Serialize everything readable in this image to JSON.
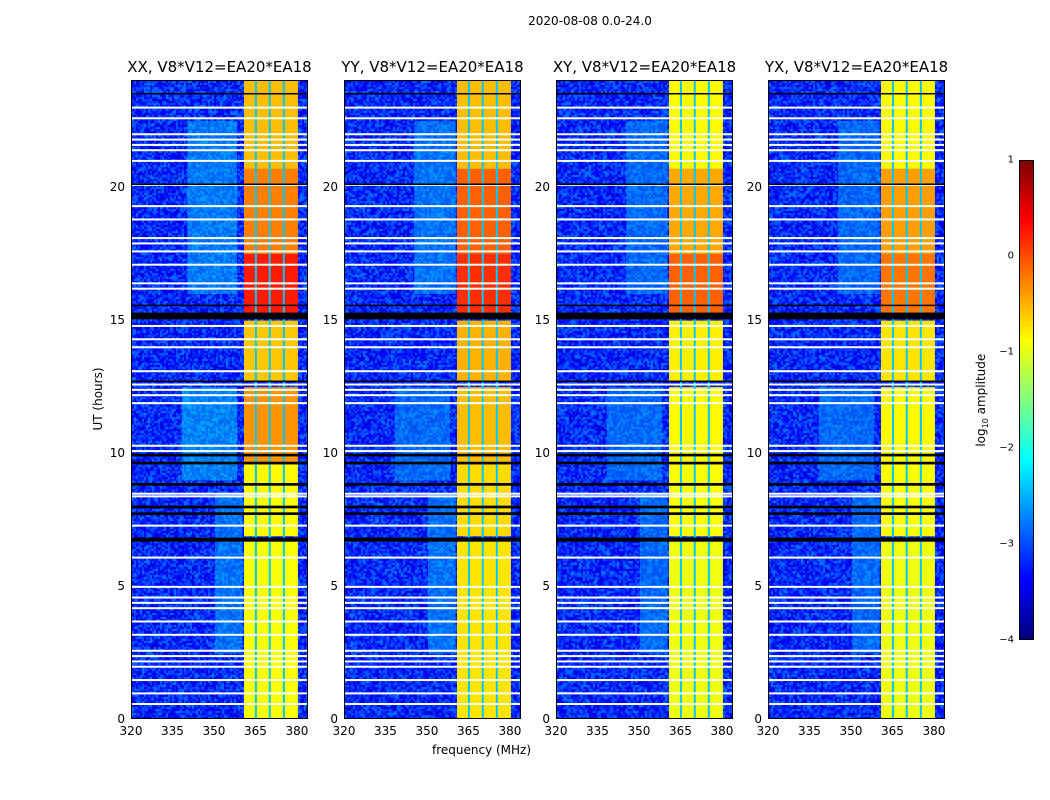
{
  "chart_data": {
    "type": "heatmap",
    "suptitle": "2020-08-08 0.0-24.0",
    "xlabel": "frequency (MHz)",
    "ylabel": "UT (hours)",
    "xlim": [
      320,
      384
    ],
    "ylim": [
      0,
      24
    ],
    "xticks": [
      "320",
      "335",
      "350",
      "365",
      "380"
    ],
    "xtick_values": [
      320,
      335,
      350,
      365,
      380
    ],
    "yticks": [
      "0",
      "5",
      "10",
      "15",
      "20"
    ],
    "ytick_values": [
      0,
      5,
      10,
      15,
      20
    ],
    "colorbar": {
      "label": "log10 amplitude",
      "label_main": "log",
      "label_sub": "10",
      "label_rest": " amplitude",
      "colormap": "jet",
      "range": [
        -4,
        1
      ],
      "ticks": [
        "1",
        "0",
        "−1",
        "−2",
        "−3",
        "−4"
      ],
      "tick_values": [
        1,
        0,
        -1,
        -2,
        -3,
        -4
      ]
    },
    "background_level": -3.2,
    "rfi_band_mhz": [
      360.5,
      380
    ],
    "band_separators_mhz": [
      364.8,
      369.8,
      374.9
    ],
    "flagged_hours_white": [
      0.6,
      1.0,
      1.5,
      2.0,
      2.2,
      2.4,
      2.6,
      3.2,
      3.7,
      4.2,
      4.4,
      4.6,
      5.0,
      6.1,
      7.3,
      8.4,
      8.5,
      10.1,
      10.3,
      11.9,
      12.2,
      12.4,
      12.6,
      13.1,
      14.0,
      14.3,
      14.8,
      16.2,
      16.4,
      17.1,
      17.6,
      17.9,
      18.1,
      18.8,
      19.3,
      20.1,
      21.0,
      21.4,
      21.6,
      21.8,
      22.0,
      22.6,
      23.0
    ],
    "gap_hours_black": [
      [
        6.7,
        6.85
      ],
      [
        7.7,
        7.8
      ],
      [
        7.95,
        8.05
      ],
      [
        8.8,
        8.9
      ],
      [
        9.6,
        9.7
      ],
      [
        9.9,
        10.0
      ],
      [
        12.7,
        12.75
      ],
      [
        15.05,
        15.3
      ],
      [
        15.55,
        15.6
      ],
      [
        20.1,
        20.15
      ],
      [
        23.5,
        23.55
      ]
    ],
    "panels": [
      {
        "title": "XX, V8*V12=EA20*EA18",
        "band_segments": [
          [
            0,
            6.7,
            -0.9
          ],
          [
            6.9,
            9.6,
            -0.85
          ],
          [
            9.6,
            12.5,
            -0.35
          ],
          [
            12.7,
            15.0,
            -0.6
          ],
          [
            15.3,
            17.5,
            0.25
          ],
          [
            17.5,
            20.7,
            -0.25
          ],
          [
            20.7,
            24,
            -0.55
          ]
        ],
        "diffuse_segments": [
          [
            338,
            358,
            9.0,
            12.5,
            -2.2
          ],
          [
            340,
            358,
            16.0,
            22.5,
            -2.3
          ],
          [
            350,
            360,
            2.5,
            8.5,
            -2.4
          ]
        ]
      },
      {
        "title": "YY, V8*V12=EA20*EA18",
        "band_segments": [
          [
            0,
            6.7,
            -0.75
          ],
          [
            6.9,
            9.6,
            -0.7
          ],
          [
            9.6,
            12.5,
            -0.55
          ],
          [
            12.7,
            15.0,
            -0.5
          ],
          [
            15.3,
            17.5,
            0.15
          ],
          [
            17.5,
            20.7,
            -0.1
          ],
          [
            20.7,
            24,
            -0.55
          ]
        ],
        "diffuse_segments": [
          [
            338,
            358,
            9.0,
            12.5,
            -2.5
          ],
          [
            345,
            360,
            16.0,
            22.5,
            -2.4
          ],
          [
            350,
            360,
            2.5,
            8.5,
            -2.4
          ]
        ]
      },
      {
        "title": "XY, V8*V12=EA20*EA18",
        "band_segments": [
          [
            0,
            6.7,
            -0.95
          ],
          [
            6.9,
            9.6,
            -0.9
          ],
          [
            9.6,
            12.5,
            -0.85
          ],
          [
            12.7,
            15.0,
            -0.8
          ],
          [
            15.3,
            17.5,
            -0.1
          ],
          [
            17.5,
            20.7,
            -0.45
          ],
          [
            20.7,
            24,
            -0.85
          ]
        ],
        "diffuse_segments": [
          [
            338,
            358,
            9.0,
            12.5,
            -2.5
          ],
          [
            345,
            360,
            16.0,
            22.5,
            -2.5
          ],
          [
            350,
            360,
            2.5,
            8.5,
            -2.5
          ]
        ]
      },
      {
        "title": "YX, V8*V12=EA20*EA18",
        "band_segments": [
          [
            0,
            6.7,
            -0.95
          ],
          [
            6.9,
            9.6,
            -0.9
          ],
          [
            9.6,
            12.5,
            -0.85
          ],
          [
            12.7,
            15.0,
            -0.75
          ],
          [
            15.3,
            17.5,
            -0.2
          ],
          [
            17.5,
            20.7,
            -0.4
          ],
          [
            20.7,
            24,
            -0.85
          ]
        ],
        "diffuse_segments": [
          [
            338,
            358,
            9.0,
            12.5,
            -2.5
          ],
          [
            345,
            360,
            16.0,
            22.5,
            -2.5
          ],
          [
            350,
            360,
            2.5,
            8.5,
            -2.5
          ]
        ]
      }
    ]
  }
}
